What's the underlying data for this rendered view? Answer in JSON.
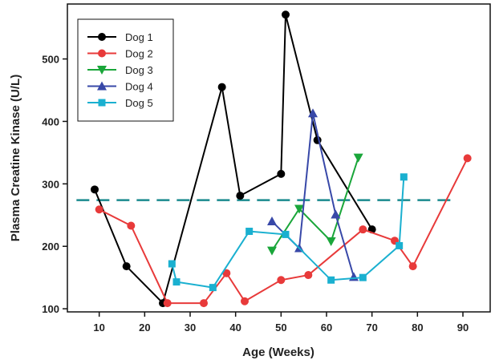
{
  "chart_data": {
    "type": "line",
    "xlabel": "Age (Weeks)",
    "ylabel": "Plasma Creatine Kinase (U/L)",
    "xlim": [
      3,
      96
    ],
    "ylim": [
      95,
      588
    ],
    "xticks": [
      10,
      20,
      30,
      40,
      50,
      60,
      70,
      80,
      90
    ],
    "yticks": [
      100,
      200,
      300,
      400,
      500
    ],
    "legend_position": "top-left",
    "reference_line": {
      "y": 274,
      "style": "dashed",
      "color": "#1a8a8e"
    },
    "series": [
      {
        "name": "Dog 1",
        "color": "#000000",
        "marker": "circle",
        "x": [
          9,
          16,
          24,
          37,
          41,
          50,
          51,
          58,
          70
        ],
        "y": [
          291,
          168,
          109,
          455,
          281,
          316,
          571,
          370,
          227
        ]
      },
      {
        "name": "Dog 2",
        "color": "#e83a3a",
        "marker": "circle",
        "x": [
          10,
          17,
          25,
          33,
          38,
          42,
          50,
          56,
          68,
          75,
          79,
          91
        ],
        "y": [
          259,
          233,
          109,
          109,
          157,
          112,
          146,
          154,
          227,
          209,
          168,
          341
        ]
      },
      {
        "name": "Dog 3",
        "color": "#1aa63a",
        "marker": "triangle-down",
        "x": [
          48,
          54,
          61,
          67
        ],
        "y": [
          193,
          260,
          208,
          342
        ]
      },
      {
        "name": "Dog 4",
        "color": "#3848a8",
        "marker": "triangle-up",
        "x": [
          48,
          54,
          57,
          62,
          66
        ],
        "y": [
          240,
          197,
          413,
          251,
          151
        ]
      },
      {
        "name": "Dog 5",
        "color": "#1ab0d0",
        "marker": "square",
        "x": [
          26,
          27,
          35,
          43,
          51,
          61,
          68,
          76,
          77
        ],
        "y": [
          172,
          143,
          134,
          224,
          219,
          146,
          150,
          201,
          311
        ]
      }
    ]
  }
}
